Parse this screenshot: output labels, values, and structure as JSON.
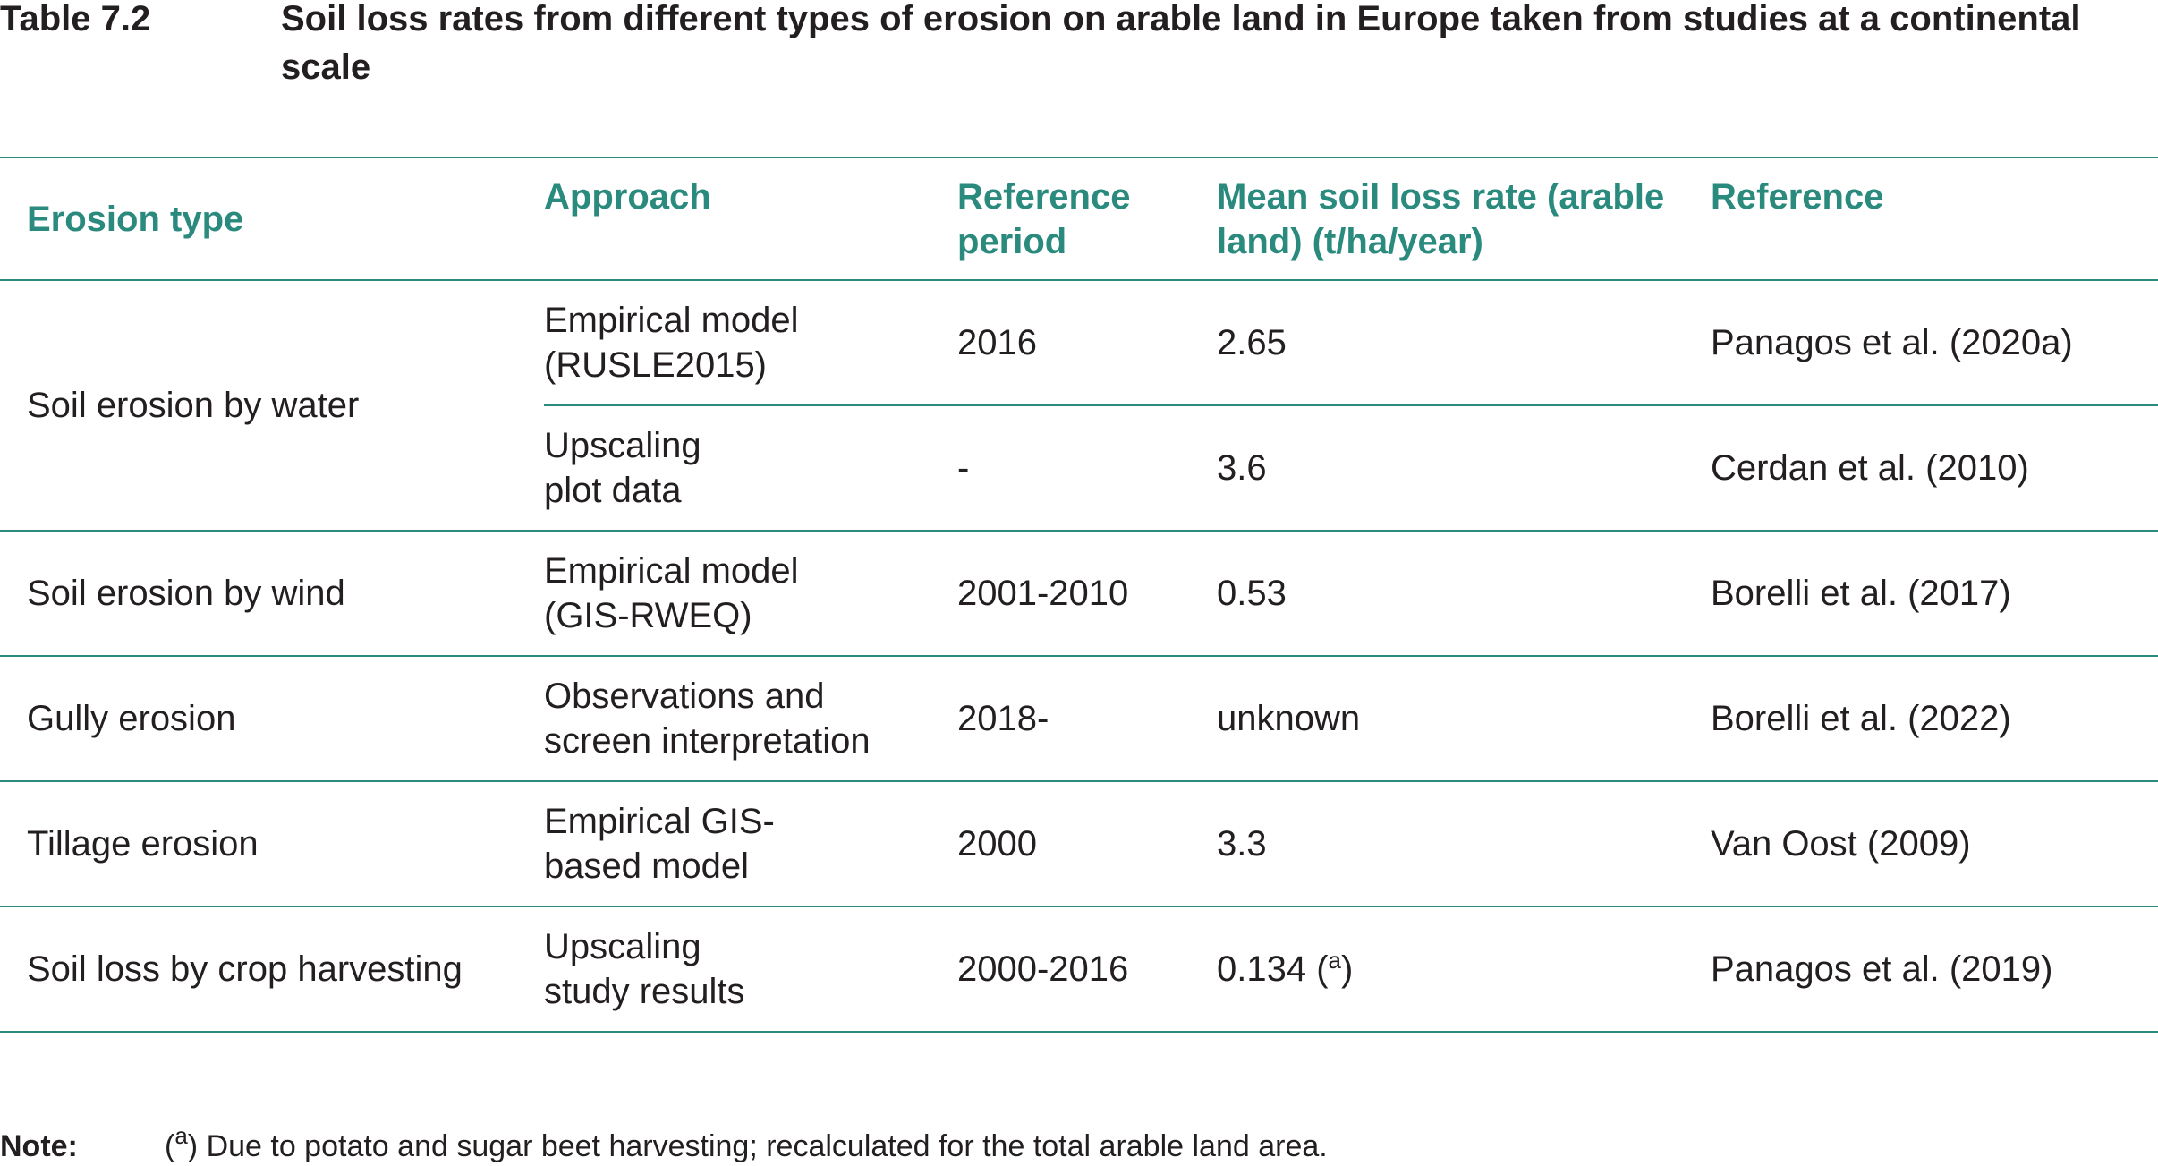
{
  "table_label": "Table 7.2",
  "title": "Soil loss rates from different types of erosion on arable land in Europe taken from studies at a continental scale",
  "headers": {
    "erosion_type": "Erosion type",
    "approach": "Approach",
    "reference_period": "Reference period",
    "mean_rate": "Mean soil loss rate (arable land) (t/ha/year)",
    "reference": "Reference"
  },
  "rows": [
    {
      "erosion_type": "Soil erosion by water",
      "approach": "Empirical model (RUSLE2015)",
      "period": "2016",
      "rate": "2.65",
      "reference": "Panagos et al. (2020a)"
    },
    {
      "erosion_type": "",
      "approach": "Upscaling plot data",
      "period": "-",
      "rate": "3.6",
      "reference": "Cerdan et al. (2010)"
    },
    {
      "erosion_type": "Soil erosion by wind",
      "approach": "Empirical model (GIS-RWEQ)",
      "period": "2001-2010",
      "rate": "0.53",
      "reference": "Borelli et al. (2017)"
    },
    {
      "erosion_type": "Gully erosion",
      "approach": "Observations and screen interpretation",
      "period": "2018-",
      "rate": "unknown",
      "reference": "Borelli et al. (2022)"
    },
    {
      "erosion_type": "Tillage erosion",
      "approach": "Empirical GIS-based model",
      "period": "2000",
      "rate": "3.3",
      "reference": "Van Oost (2009)"
    },
    {
      "erosion_type": "Soil loss by crop harvesting",
      "approach": "Upscaling study results",
      "period": "2000-2016",
      "rate": "0.134",
      "rate_note": "a",
      "reference": "Panagos et al. (2019)"
    }
  ],
  "note": {
    "label": "Note:",
    "marker": "a",
    "text": ") Due to potato and sugar beet harvesting; recalculated for the total arable land area."
  },
  "colors": {
    "accent": "#2a8a7e",
    "text": "#231f20"
  }
}
